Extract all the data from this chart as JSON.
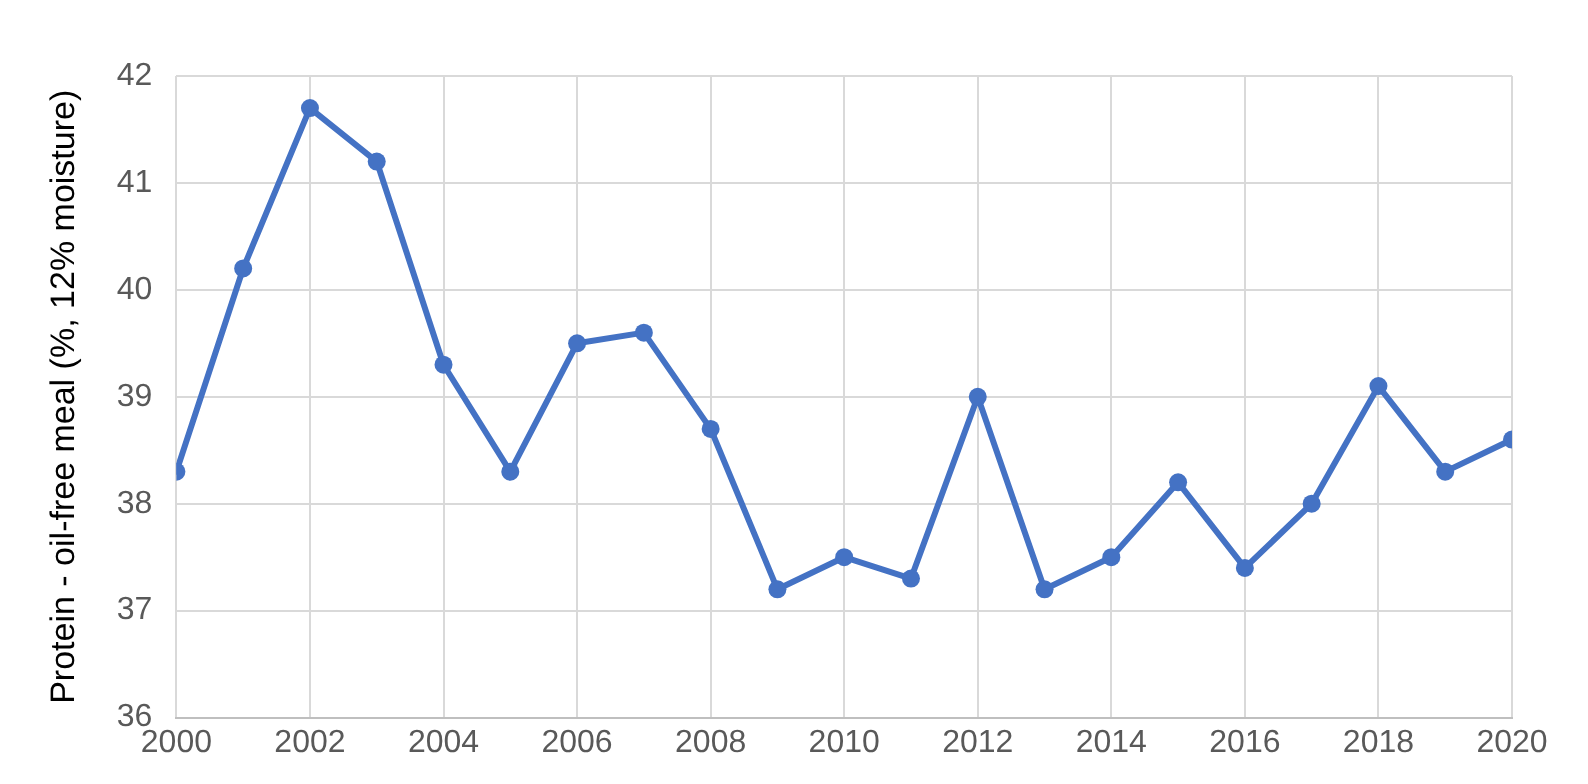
{
  "chart_data": {
    "type": "line",
    "ylabel": "Protein - oil-free meal (%, 12% moisture)",
    "x": [
      2000,
      2001,
      2002,
      2003,
      2004,
      2005,
      2006,
      2007,
      2008,
      2009,
      2010,
      2011,
      2012,
      2013,
      2014,
      2015,
      2016,
      2017,
      2018,
      2019,
      2020
    ],
    "series": [
      {
        "color": "#4472c4",
        "values": [
          38.3,
          40.2,
          41.7,
          41.2,
          39.3,
          38.3,
          39.5,
          39.6,
          38.7,
          37.2,
          37.5,
          37.3,
          39.0,
          37.2,
          37.5,
          38.2,
          37.4,
          38.0,
          39.1,
          38.3,
          38.6
        ]
      }
    ],
    "xlim": [
      2000,
      2020
    ],
    "xticks": [
      2000,
      2002,
      2004,
      2006,
      2008,
      2010,
      2012,
      2014,
      2016,
      2018,
      2020
    ],
    "ylim": [
      36,
      42
    ],
    "yticks": [
      36,
      37,
      38,
      39,
      40,
      41,
      42
    ],
    "grid": true,
    "marker": "circle",
    "line_style": "solid",
    "legend": false
  }
}
